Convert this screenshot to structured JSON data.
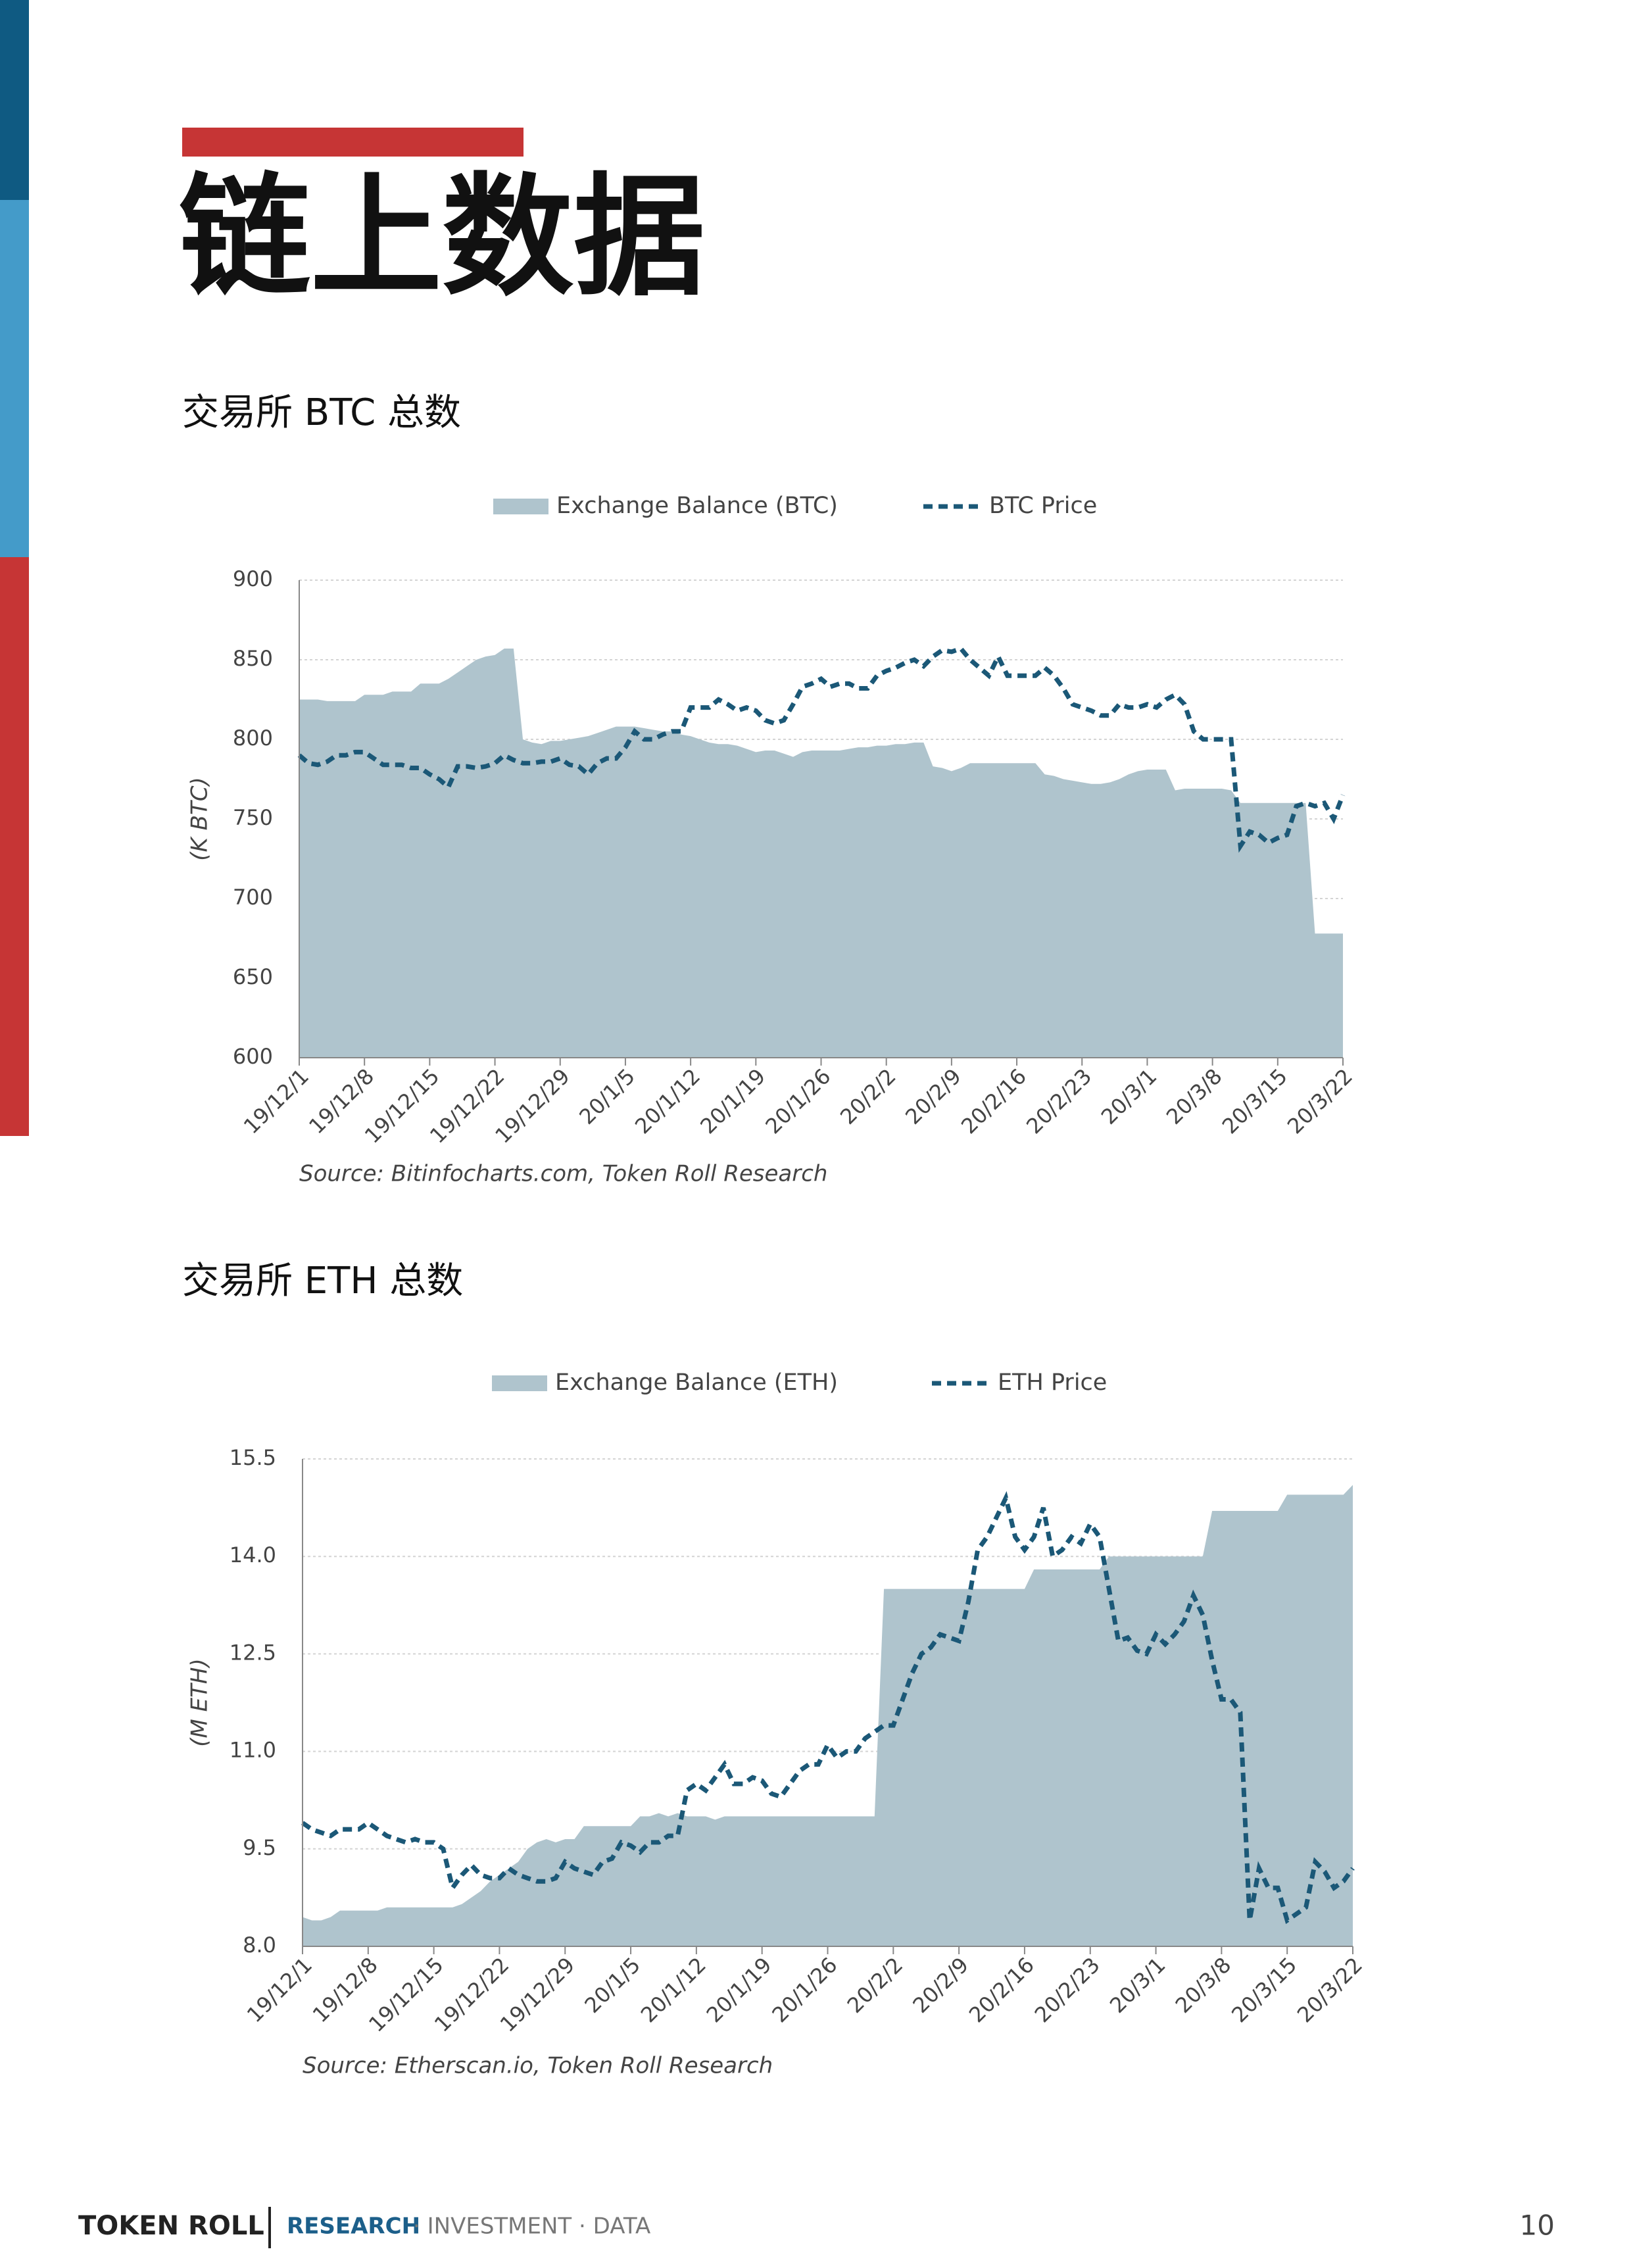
{
  "header": {
    "title": "链上数据"
  },
  "chart_data": [
    {
      "type": "area",
      "title": "交易所 BTC 总数",
      "y_label": "(K BTC)",
      "note": "Source: Bitinfocharts.com, Token Roll Research",
      "categories": [
        "19/12/1",
        null,
        null,
        null,
        null,
        null,
        null,
        "19/12/8",
        null,
        null,
        null,
        null,
        null,
        null,
        "19/12/15",
        null,
        null,
        null,
        null,
        null,
        null,
        "19/12/22",
        null,
        null,
        null,
        null,
        null,
        null,
        "19/12/29",
        null,
        null,
        null,
        null,
        null,
        null,
        "20/1/5",
        null,
        null,
        null,
        null,
        null,
        null,
        "20/1/12",
        null,
        null,
        null,
        null,
        null,
        null,
        "20/1/19",
        null,
        null,
        null,
        null,
        null,
        null,
        "20/1/26",
        null,
        null,
        null,
        null,
        null,
        null,
        "20/2/2",
        null,
        null,
        null,
        null,
        null,
        null,
        "20/2/9",
        null,
        null,
        null,
        null,
        null,
        null,
        "20/2/16",
        null,
        null,
        null,
        null,
        null,
        null,
        "20/2/23",
        null,
        null,
        null,
        null,
        null,
        null,
        "20/3/1",
        null,
        null,
        null,
        null,
        null,
        null,
        "20/3/8",
        null,
        null,
        null,
        null,
        null,
        null,
        "20/3/15",
        null,
        null,
        null,
        null,
        null,
        null,
        "20/3/22"
      ],
      "series": [
        {
          "name": "Exchange Balance (BTC)",
          "type": "area",
          "color": "#afc4cd",
          "values": [
            825,
            825,
            825,
            824,
            824,
            824,
            824,
            828,
            828,
            828,
            830,
            830,
            830,
            835,
            835,
            835,
            838,
            842,
            846,
            850,
            852,
            853,
            857,
            857,
            800,
            798,
            797,
            799,
            799,
            800,
            801,
            802,
            804,
            806,
            808,
            808,
            808,
            807,
            806,
            805,
            805,
            803,
            802,
            800,
            798,
            797,
            797,
            796,
            794,
            792,
            793,
            793,
            791,
            789,
            792,
            793,
            793,
            793,
            793,
            794,
            795,
            795,
            796,
            796,
            797,
            797,
            798,
            798,
            783,
            782,
            780,
            782,
            785,
            785,
            785,
            785,
            785,
            785,
            785,
            785,
            778,
            777,
            775,
            774,
            773,
            772,
            772,
            773,
            775,
            778,
            780,
            781,
            781,
            781,
            768,
            769,
            769,
            769,
            769,
            769,
            768,
            760,
            760,
            760,
            760,
            760,
            760,
            760,
            760,
            678,
            678,
            678,
            678
          ]
        },
        {
          "name": "BTC Price",
          "type": "line",
          "line_style": "dashed",
          "color": "#1b5877",
          "values": [
            790,
            785,
            784,
            786,
            790,
            790,
            792,
            792,
            788,
            784,
            784,
            784,
            782,
            782,
            778,
            775,
            770,
            783,
            783,
            782,
            783,
            785,
            790,
            787,
            785,
            785,
            786,
            786,
            788,
            784,
            783,
            778,
            785,
            788,
            788,
            795,
            805,
            800,
            800,
            803,
            805,
            805,
            820,
            820,
            820,
            825,
            822,
            818,
            820,
            818,
            812,
            810,
            812,
            822,
            833,
            835,
            838,
            833,
            835,
            835,
            832,
            832,
            840,
            843,
            845,
            848,
            850,
            846,
            852,
            856,
            855,
            857,
            850,
            845,
            840,
            852,
            840,
            840,
            840,
            840,
            845,
            840,
            832,
            822,
            820,
            818,
            815,
            815,
            822,
            820,
            820,
            822,
            820,
            825,
            828,
            822,
            805,
            800,
            800,
            800,
            800,
            733,
            742,
            740,
            735,
            738,
            740,
            758,
            760,
            758,
            760,
            750,
            765
          ]
        }
      ],
      "ylim": [
        600,
        900
      ],
      "yticks": [
        600,
        650,
        700,
        750,
        800,
        850,
        900
      ],
      "grid": true
    },
    {
      "type": "area",
      "title": "交易所 ETH 总数",
      "y_label": "(M ETH)",
      "note": "Source: Etherscan.io, Token Roll Research",
      "categories": [
        "19/12/1",
        null,
        null,
        null,
        null,
        null,
        null,
        "19/12/8",
        null,
        null,
        null,
        null,
        null,
        null,
        "19/12/15",
        null,
        null,
        null,
        null,
        null,
        null,
        "19/12/22",
        null,
        null,
        null,
        null,
        null,
        null,
        "19/12/29",
        null,
        null,
        null,
        null,
        null,
        null,
        "20/1/5",
        null,
        null,
        null,
        null,
        null,
        null,
        "20/1/12",
        null,
        null,
        null,
        null,
        null,
        null,
        "20/1/19",
        null,
        null,
        null,
        null,
        null,
        null,
        "20/1/26",
        null,
        null,
        null,
        null,
        null,
        null,
        "20/2/2",
        null,
        null,
        null,
        null,
        null,
        null,
        "20/2/9",
        null,
        null,
        null,
        null,
        null,
        null,
        "20/2/16",
        null,
        null,
        null,
        null,
        null,
        null,
        "20/2/23",
        null,
        null,
        null,
        null,
        null,
        null,
        "20/3/1",
        null,
        null,
        null,
        null,
        null,
        null,
        "20/3/8",
        null,
        null,
        null,
        null,
        null,
        null,
        "20/3/15",
        null,
        null,
        null,
        null,
        null,
        null,
        "20/3/22"
      ],
      "series": [
        {
          "name": "Exchange Balance (ETH)",
          "type": "area",
          "color": "#afc4cd",
          "values": [
            8.45,
            8.4,
            8.4,
            8.45,
            8.55,
            8.55,
            8.55,
            8.55,
            8.55,
            8.6,
            8.6,
            8.6,
            8.6,
            8.6,
            8.6,
            8.6,
            8.6,
            8.65,
            8.75,
            8.85,
            9.0,
            9.1,
            9.2,
            9.3,
            9.5,
            9.6,
            9.65,
            9.6,
            9.65,
            9.65,
            9.85,
            9.85,
            9.85,
            9.85,
            9.85,
            9.85,
            10.0,
            10.0,
            10.05,
            10.0,
            10.05,
            10.0,
            10.0,
            10.0,
            9.95,
            10.0,
            10.0,
            10.0,
            10.0,
            10.0,
            10.0,
            10.0,
            10.0,
            10.0,
            10.0,
            10.0,
            10.0,
            10.0,
            10.0,
            10.0,
            10.0,
            10.0,
            13.5,
            13.5,
            13.5,
            13.5,
            13.5,
            13.5,
            13.5,
            13.5,
            13.5,
            13.5,
            13.5,
            13.5,
            13.5,
            13.5,
            13.5,
            13.5,
            13.8,
            13.8,
            13.8,
            13.8,
            13.8,
            13.8,
            13.8,
            13.8,
            14.0,
            14.0,
            14.0,
            14.0,
            14.0,
            14.0,
            14.0,
            14.0,
            14.0,
            14.0,
            14.0,
            14.7,
            14.7,
            14.7,
            14.7,
            14.7,
            14.7,
            14.7,
            14.7,
            14.95,
            14.95,
            14.95,
            14.95,
            14.95,
            14.95,
            14.95,
            15.1
          ]
        },
        {
          "name": "ETH Price",
          "type": "line",
          "line_style": "dashed",
          "color": "#1b5877",
          "values": [
            9.9,
            9.8,
            9.75,
            9.7,
            9.8,
            9.8,
            9.8,
            9.9,
            9.8,
            9.7,
            9.65,
            9.6,
            9.65,
            9.6,
            9.6,
            9.5,
            8.9,
            9.1,
            9.25,
            9.1,
            9.05,
            9.05,
            9.2,
            9.1,
            9.05,
            9.0,
            9.0,
            9.05,
            9.3,
            9.2,
            9.15,
            9.1,
            9.3,
            9.35,
            9.6,
            9.55,
            9.45,
            9.6,
            9.6,
            9.7,
            9.7,
            10.4,
            10.5,
            10.4,
            10.6,
            10.8,
            10.5,
            10.5,
            10.6,
            10.55,
            10.35,
            10.3,
            10.5,
            10.7,
            10.8,
            10.8,
            11.1,
            10.9,
            11.0,
            11.0,
            11.2,
            11.3,
            11.4,
            11.4,
            11.8,
            12.2,
            12.5,
            12.6,
            12.8,
            12.75,
            12.7,
            13.3,
            14.1,
            14.3,
            14.6,
            14.9,
            14.3,
            14.1,
            14.3,
            14.75,
            14.0,
            14.1,
            14.3,
            14.2,
            14.5,
            14.3,
            13.5,
            12.7,
            12.75,
            12.55,
            12.5,
            12.8,
            12.65,
            12.8,
            13.0,
            13.4,
            13.1,
            12.4,
            11.8,
            11.8,
            11.6,
            8.4,
            9.2,
            8.9,
            8.9,
            8.4,
            8.5,
            8.6,
            9.3,
            9.15,
            8.9,
            9.0,
            9.2
          ]
        }
      ],
      "ylim": [
        8,
        15.5
      ],
      "yticks": [
        {
          "value": 8,
          "label": "8.0"
        },
        9.5,
        {
          "value": 11,
          "label": "11.0"
        },
        12.5,
        {
          "value": 14,
          "label": "14.0"
        },
        15.5
      ],
      "grid": true
    }
  ],
  "footer": {
    "brand": "TOKEN ROLL",
    "highlight": "RESEARCH",
    "tagline": "· INVESTMENT · DATA",
    "page": "10"
  }
}
